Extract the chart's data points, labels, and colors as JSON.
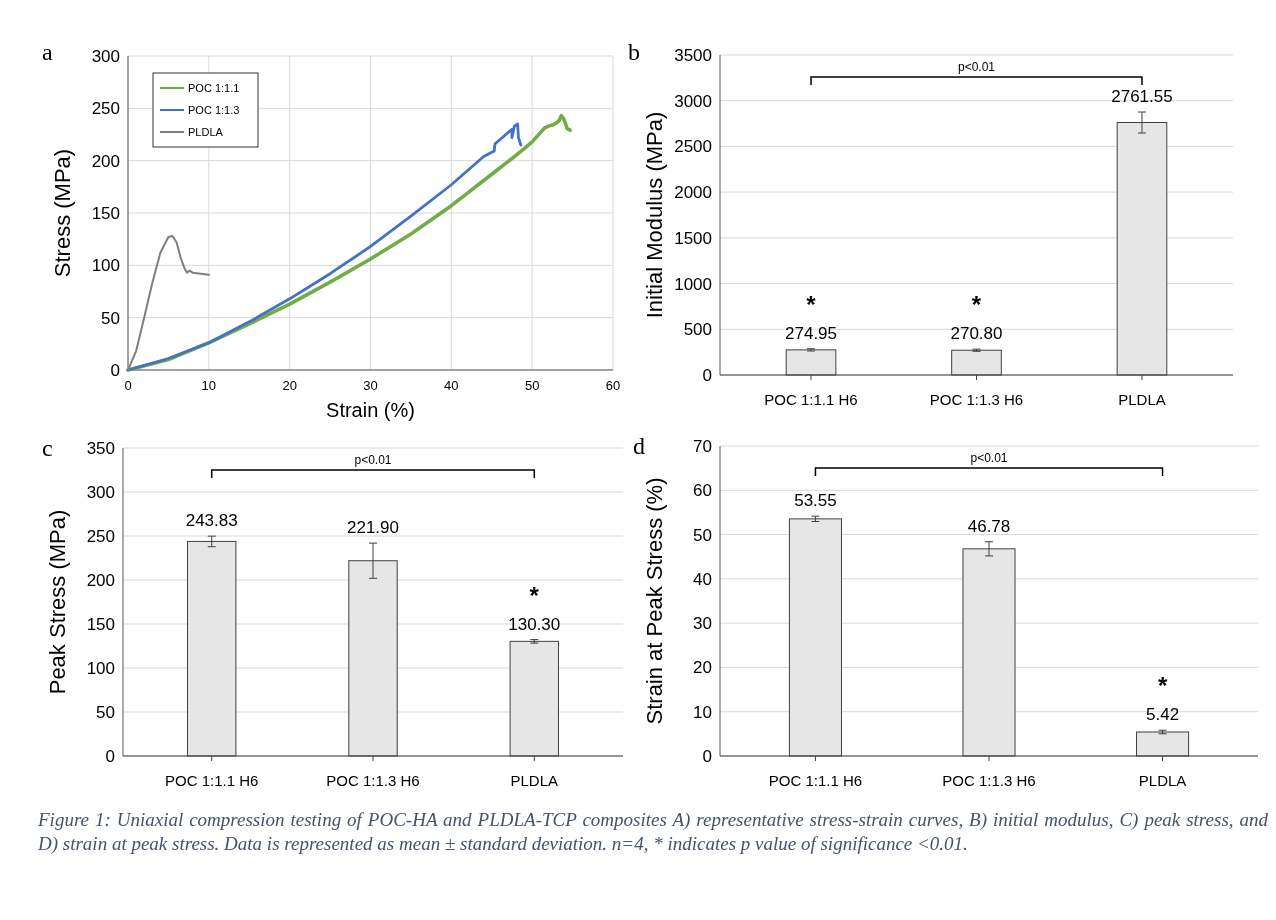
{
  "chart_data": [
    {
      "type": "line",
      "title": "a",
      "xlabel": "Strain (%)",
      "ylabel": "Stress (MPa)",
      "xlim": [
        0,
        60
      ],
      "xticks": [
        0,
        10,
        20,
        30,
        40,
        50,
        60
      ],
      "ylim": [
        0,
        300
      ],
      "yticks": [
        0,
        50,
        100,
        150,
        200,
        250,
        300
      ],
      "grid": true,
      "legend": "top left",
      "marker": "none",
      "line_style": "solid",
      "series": [
        {
          "name": "POC 1:1.1",
          "color": "#70ad47",
          "x": [
            0,
            5,
            10,
            15,
            20,
            25,
            30,
            35,
            40,
            45,
            48,
            50,
            51.5,
            52,
            52.5,
            53,
            53.3,
            53.6,
            53.9,
            54.1,
            54.3,
            54.7
          ],
          "values": [
            0,
            10,
            26,
            44,
            63,
            84,
            106,
            130,
            157,
            187,
            205,
            218,
            231,
            233,
            234,
            236,
            238,
            243,
            240,
            236,
            231,
            229
          ]
        },
        {
          "name": "POC 1:1.3",
          "color": "#4472c4",
          "x": [
            0,
            5,
            10,
            15,
            20,
            25,
            30,
            35,
            40,
            44,
            45,
            45.3,
            45.4,
            46,
            47.5,
            47.5,
            47.8,
            48.2,
            48.3,
            48.6
          ],
          "values": [
            0,
            11,
            26,
            46,
            68,
            92,
            118,
            147,
            177,
            204,
            208,
            209,
            216,
            220,
            230,
            222,
            233,
            235,
            222,
            215
          ]
        },
        {
          "name": "PLDLA",
          "color": "#7f7f7f",
          "x": [
            0,
            1,
            2,
            3,
            4,
            5,
            5.5,
            6,
            6.5,
            6.7,
            7,
            7.3,
            7.6,
            8,
            9,
            10
          ],
          "values": [
            0,
            18,
            50,
            83,
            112,
            127,
            128,
            122,
            108,
            103,
            97,
            93,
            95,
            93,
            92,
            91
          ]
        }
      ]
    },
    {
      "type": "bar",
      "title": "b",
      "ylabel": "Initial Modulus (MPa)",
      "categories": [
        "POC 1:1.1 H6",
        "POC 1:1.3 H6",
        "PLDLA"
      ],
      "values": [
        274.95,
        270.8,
        2761.55
      ],
      "value_labels": [
        "274.95",
        "270.80",
        "2761.55"
      ],
      "errors": [
        12,
        12,
        115
      ],
      "color": "#e6e6e6",
      "ylim": [
        0,
        3500
      ],
      "yticks": [
        0,
        500,
        1000,
        1500,
        2000,
        2500,
        3000,
        3500
      ],
      "grid": "y",
      "annotations": [
        "p<0.01",
        {
          "text": "*",
          "x": "POC 1:1.1 H6",
          "y": 274.95
        },
        {
          "text": "*",
          "x": "POC 1:1.3 H6",
          "y": 270.8
        }
      ]
    },
    {
      "type": "bar",
      "title": "c",
      "ylabel": "Peak Stress (MPa)",
      "categories": [
        "POC 1:1.1 H6",
        "POC 1:1.3 H6",
        "PLDLA"
      ],
      "values": [
        243.83,
        221.9,
        130.3
      ],
      "value_labels": [
        "243.83",
        "221.90",
        "130.30"
      ],
      "errors": [
        6,
        20,
        2
      ],
      "color": "#e6e6e6",
      "ylim": [
        0,
        350
      ],
      "yticks": [
        0,
        50,
        100,
        150,
        200,
        250,
        300,
        350
      ],
      "grid": "y",
      "annotations": [
        "p<0.01",
        {
          "text": "*",
          "x": "PLDLA",
          "y": 130.3
        }
      ]
    },
    {
      "type": "bar",
      "title": "d",
      "ylabel": "Strain at Peak Stress (%)",
      "categories": [
        "POC 1:1.1 H6",
        "POC 1:1.3 H6",
        "PLDLA"
      ],
      "values": [
        53.55,
        46.78,
        5.42
      ],
      "value_labels": [
        "53.55",
        "46.78",
        "5.42"
      ],
      "errors": [
        0.6,
        1.6,
        0.4
      ],
      "color": "#e6e6e6",
      "ylim": [
        0,
        70
      ],
      "yticks": [
        0,
        10,
        20,
        30,
        40,
        50,
        60,
        70
      ],
      "grid": "y",
      "annotations": [
        "p<0.01",
        {
          "text": "*",
          "x": "PLDLA",
          "y": 5.42
        },
        "Figure 1: Uniaxial compression testing of POC-HA and PLDLA-TCP composites A) representative stress-strain curves, B) initial modulus, C) peak stress, and D) strain at peak stress. Data is represented as mean ± standard deviation. n=4, * indicates p value of significance <0.01."
      ]
    }
  ]
}
